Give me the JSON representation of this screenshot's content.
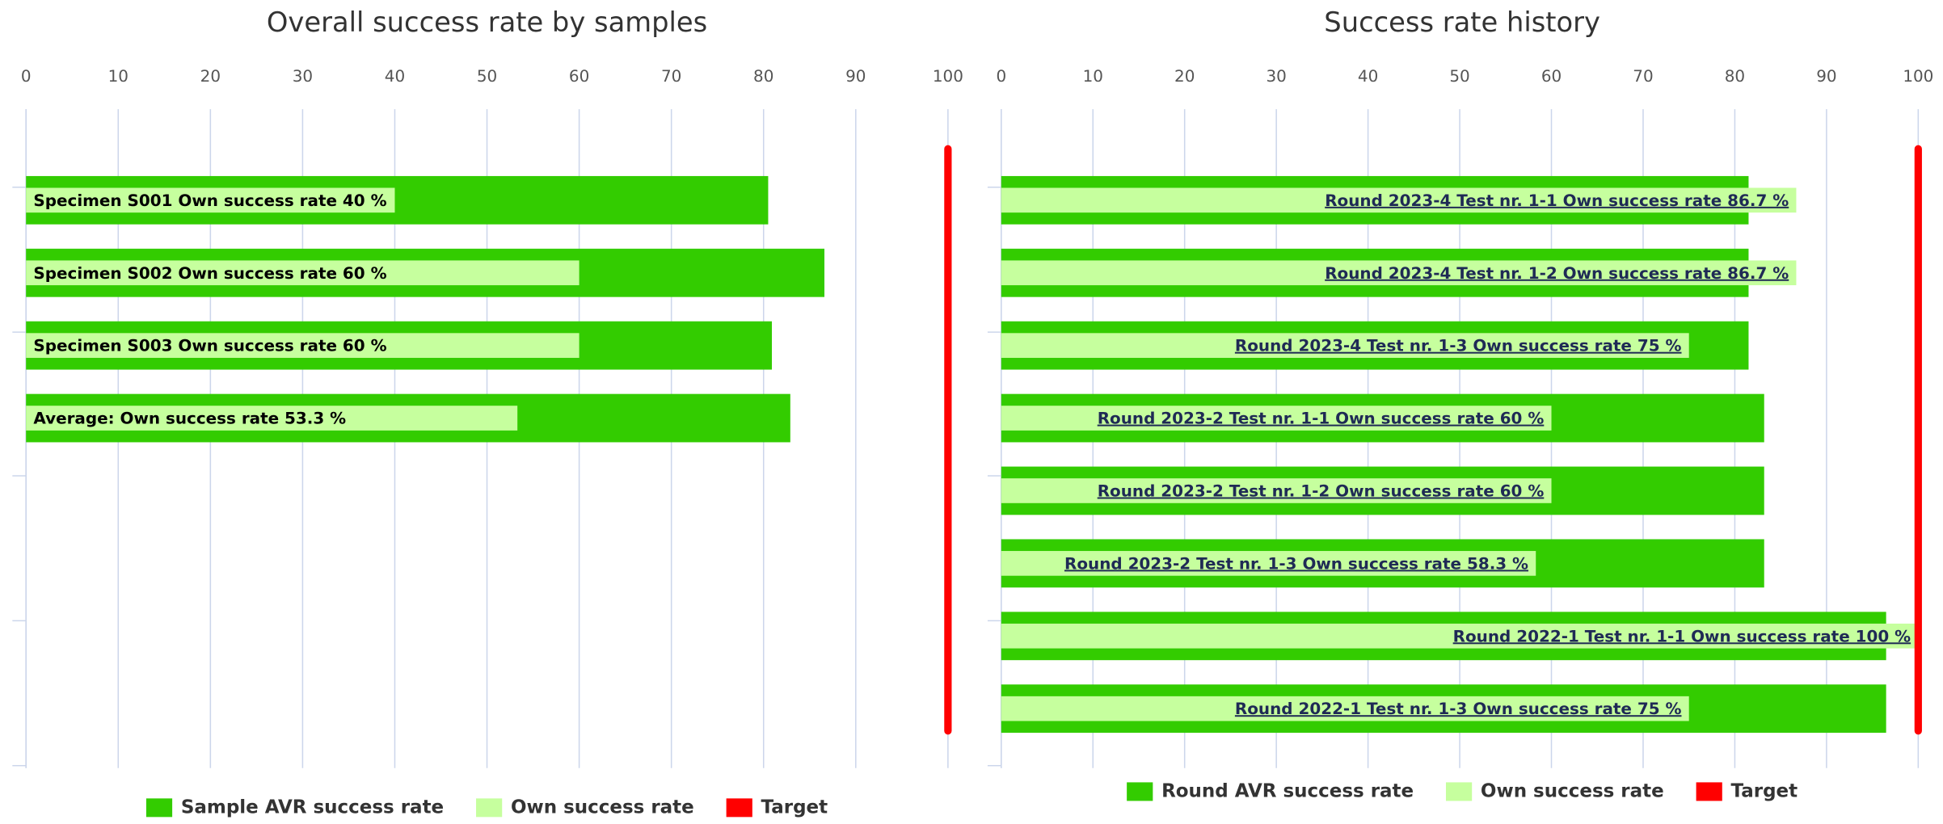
{
  "chart_data": [
    {
      "type": "bar",
      "title": "Overall success rate by samples",
      "xlim": [
        0,
        100
      ],
      "xticks": [
        0,
        10,
        20,
        30,
        40,
        50,
        60,
        70,
        80,
        90,
        100
      ],
      "grid": true,
      "series": [
        {
          "name": "Sample AVR success rate",
          "color": "#33cc00",
          "values": [
            80.5,
            86.6,
            80.9,
            82.9
          ]
        },
        {
          "name": "Own success rate",
          "color": "#c6ff9e",
          "values": [
            40,
            60,
            60,
            53.3
          ],
          "value_labels": [
            "Specimen S001 Own success rate 40 %",
            "Specimen S002 Own success rate 60 %",
            "Specimen S003 Own success rate 60 %",
            "Average: Own success rate 53.3 %"
          ]
        }
      ],
      "target": {
        "name": "Target",
        "color": "#ff0000",
        "value": 100
      }
    },
    {
      "type": "bar",
      "title": "Success rate history",
      "xlim": [
        0,
        100
      ],
      "xticks": [
        0,
        10,
        20,
        30,
        40,
        50,
        60,
        70,
        80,
        90,
        100
      ],
      "grid": true,
      "series": [
        {
          "name": "Round AVR success rate",
          "color": "#33cc00",
          "values": [
            81.5,
            81.5,
            81.5,
            83.2,
            83.2,
            83.2,
            96.5,
            96.5
          ]
        },
        {
          "name": "Own success rate",
          "color": "#c6ff9e",
          "values": [
            86.7,
            86.7,
            75,
            60,
            60,
            58.3,
            100,
            75
          ],
          "value_labels": [
            "Round 2023-4 Test nr. 1-1 Own success rate 86.7 %",
            "Round 2023-4 Test nr. 1-2 Own success rate 86.7 %",
            "Round 2023-4 Test nr. 1-3 Own success rate 75 %",
            "Round 2023-2 Test nr. 1-1 Own success rate 60 %",
            "Round 2023-2 Test nr. 1-2 Own success rate 60 %",
            "Round 2023-2 Test nr. 1-3 Own success rate 58.3 %",
            "Round 2022-1 Test nr. 1-1 Own success rate 100 %",
            "Round 2022-1 Test nr. 1-3 Own success rate 75 %"
          ]
        }
      ],
      "target": {
        "name": "Target",
        "color": "#ff0000",
        "value": 100
      }
    }
  ]
}
